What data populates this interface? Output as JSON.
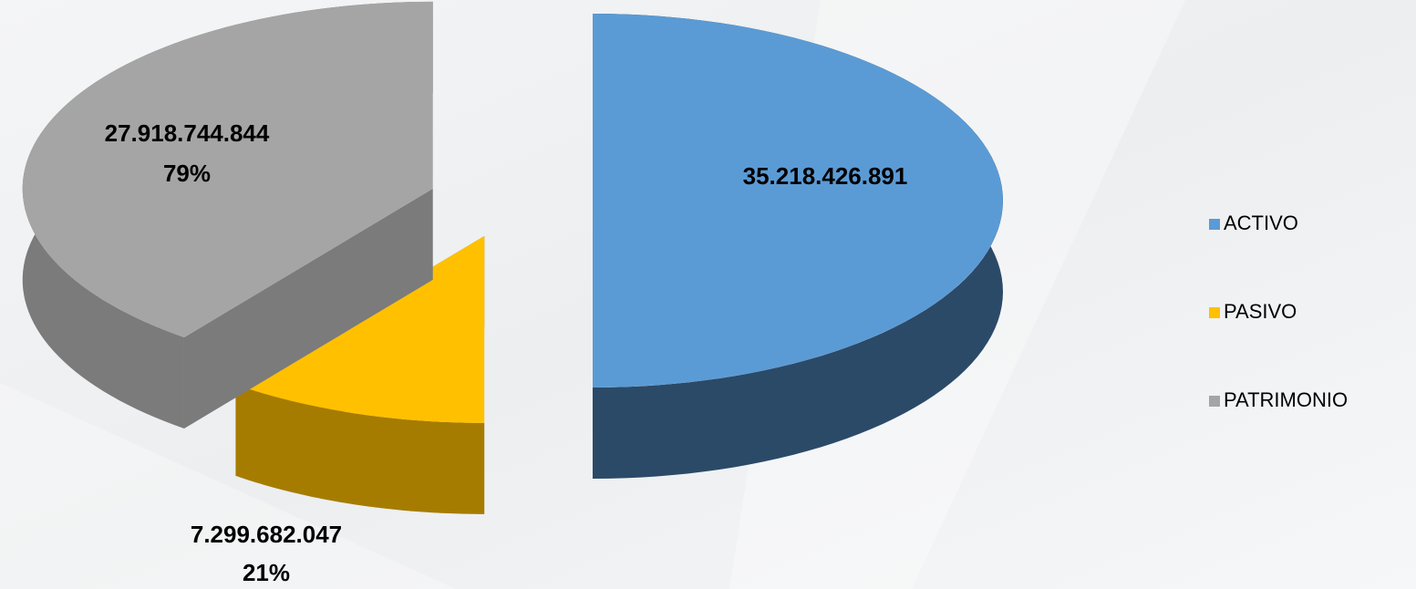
{
  "chart_data": {
    "type": "pie3d",
    "categories": [
      "ACTIVO",
      "PASIVO",
      "PATRIMONIO"
    ],
    "values": [
      35218426891,
      7299682047,
      27918744844
    ],
    "value_labels": [
      "35.218.426.891",
      "7.299.682.047",
      "27.918.744.844"
    ],
    "percentages": [
      null,
      21,
      79
    ],
    "percent_labels": [
      null,
      "21%",
      "79%"
    ],
    "colors": [
      "#5b9bd5",
      "#ffc000",
      "#a5a5a5"
    ],
    "side_colors": [
      "#2b4a68",
      "#a67c00",
      "#7b7b7b"
    ],
    "legend": "right"
  }
}
